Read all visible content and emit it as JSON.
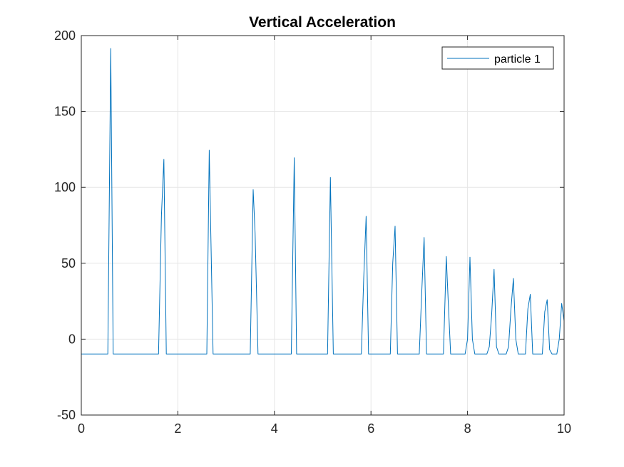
{
  "chart_data": {
    "type": "line",
    "title": "Vertical Acceleration",
    "xlabel": "",
    "ylabel": "",
    "xlim": [
      0,
      10
    ],
    "ylim": [
      -50,
      200
    ],
    "x_ticks": [
      0,
      2,
      4,
      6,
      8,
      10
    ],
    "y_ticks": [
      -50,
      0,
      50,
      100,
      150,
      200
    ],
    "x_tick_labels": [
      "0",
      "2",
      "4",
      "6",
      "8",
      "10"
    ],
    "y_tick_labels": [
      "-50",
      "0",
      "50",
      "100",
      "150",
      "200"
    ],
    "grid": true,
    "legend_position": "top-right",
    "colors": {
      "series": "#0072bd",
      "axis": "#262626",
      "grid": "#e6e6e6"
    },
    "series": [
      {
        "name": "particle 1",
        "x": [
          0,
          0.55,
          0.61,
          0.66,
          1.6,
          1.66,
          1.71,
          1.76,
          2.6,
          2.65,
          2.73,
          3.5,
          3.56,
          3.6,
          3.66,
          4.35,
          4.41,
          4.46,
          5.1,
          5.16,
          5.22,
          5.8,
          5.85,
          5.9,
          5.95,
          6.4,
          6.45,
          6.5,
          6.55,
          7.0,
          7.05,
          7.1,
          7.15,
          7.5,
          7.56,
          7.6,
          7.65,
          7.95,
          8.0,
          8.05,
          8.1,
          8.15,
          8.4,
          8.45,
          8.5,
          8.55,
          8.6,
          8.65,
          8.8,
          8.85,
          8.9,
          8.95,
          9.0,
          9.05,
          9.2,
          9.25,
          9.3,
          9.35,
          9.4,
          9.45,
          9.55,
          9.6,
          9.65,
          9.7,
          9.75,
          9.85,
          9.9,
          9.95,
          10.0
        ],
        "y": [
          -9.8,
          -9.8,
          191.5,
          -9.8,
          -9.8,
          82,
          118.5,
          -9.8,
          -9.8,
          124.5,
          -9.8,
          -9.8,
          98.5,
          70,
          -9.8,
          -9.8,
          119.5,
          -9.8,
          -9.8,
          106.5,
          -9.8,
          -9.8,
          40,
          81,
          -9.8,
          -9.8,
          50,
          74.5,
          -9.8,
          -9.8,
          30,
          67,
          -9.8,
          -9.8,
          54.5,
          25,
          -9.8,
          -9.8,
          0,
          54,
          0,
          -9.8,
          -9.8,
          -5,
          16,
          46,
          -5,
          -9.8,
          -9.8,
          -5,
          20,
          40,
          0,
          -9.8,
          -9.8,
          20,
          29.5,
          -9.8,
          -9.8,
          -9.8,
          -9.8,
          18,
          26,
          -7,
          -9.8,
          -9.8,
          0,
          23.5,
          12
        ]
      }
    ]
  }
}
